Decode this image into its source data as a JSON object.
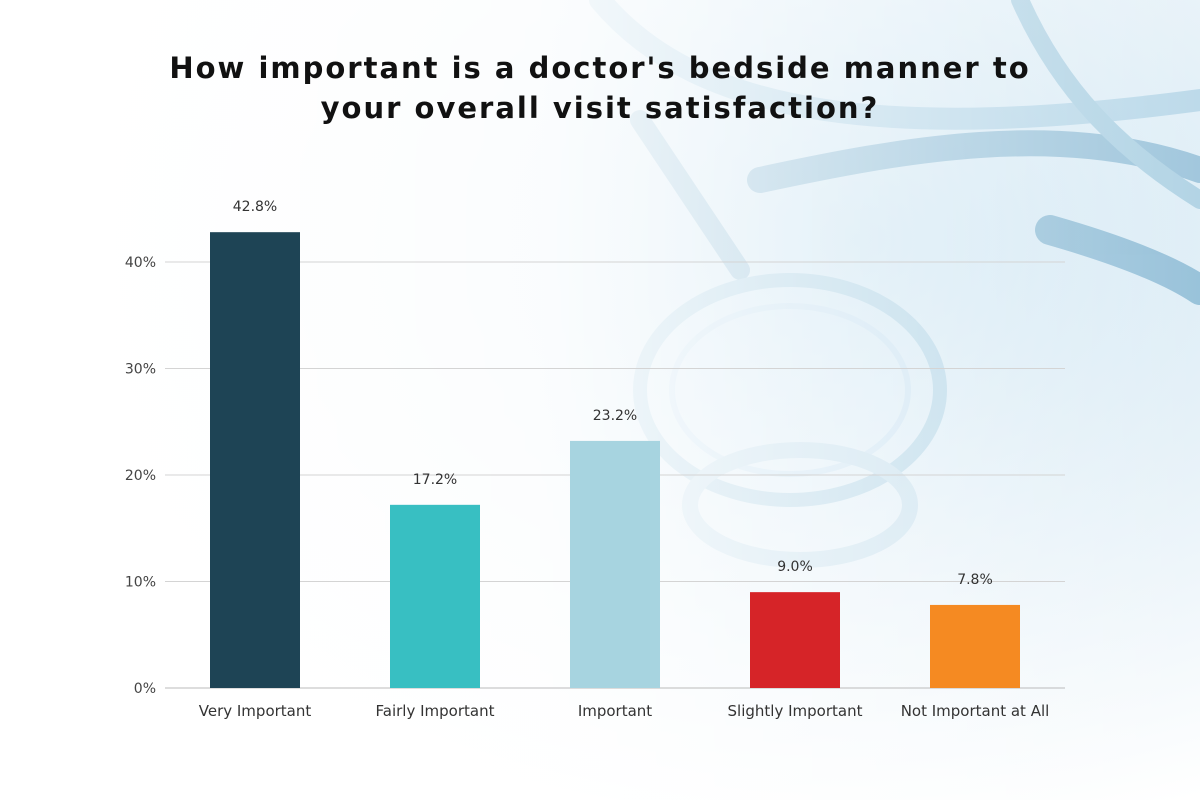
{
  "title_lines": [
    "How important is a doctor's bedside manner to",
    "your overall visit satisfaction?"
  ],
  "chart_data": {
    "type": "bar",
    "title": "How important is a doctor's bedside manner to your overall visit satisfaction?",
    "categories": [
      "Very Important",
      "Fairly Important",
      "Important",
      "Slightly Important",
      "Not Important at All"
    ],
    "values": [
      42.8,
      17.2,
      23.2,
      9.0,
      7.8
    ],
    "data_labels": [
      "42.8%",
      "17.2%",
      "23.2%",
      "9.0%",
      "7.8%"
    ],
    "colors": [
      "#1e4455",
      "#38bfc2",
      "#a7d4e0",
      "#d62428",
      "#f58a22"
    ],
    "yticks": [
      0,
      10,
      20,
      30,
      40
    ],
    "ytick_labels": [
      "0%",
      "10%",
      "20%",
      "30%",
      "40%"
    ],
    "ylim": [
      0,
      40
    ],
    "grid": true,
    "xlabel": "",
    "ylabel": ""
  }
}
